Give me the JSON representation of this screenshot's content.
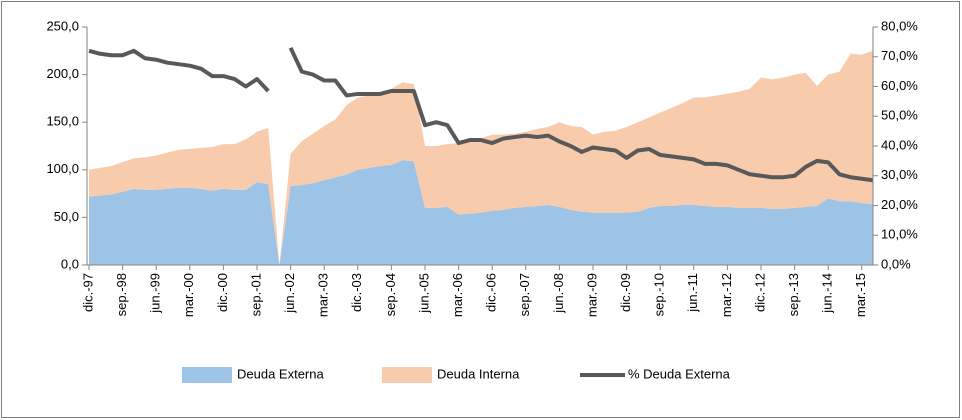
{
  "chart_data": {
    "type": "stacked_area_line",
    "categories": [
      "dic.-97",
      null,
      null,
      "sep.-98",
      null,
      null,
      "jun.-99",
      null,
      null,
      "mar.-00",
      null,
      null,
      "dic.-00",
      null,
      null,
      "sep.-01",
      null,
      null,
      "jun.-02",
      null,
      null,
      "mar.-03",
      null,
      null,
      "dic.-03",
      null,
      null,
      "sep.-04",
      null,
      null,
      "jun.-05",
      null,
      null,
      "mar.-06",
      null,
      null,
      "dic.-06",
      null,
      null,
      "sep.-07",
      null,
      null,
      "jun.-08",
      null,
      null,
      "mar.-09",
      null,
      null,
      "dic.-09",
      null,
      null,
      "sep.-10",
      null,
      null,
      "jun.-11",
      null,
      null,
      "mar.-12",
      null,
      null,
      "dic.-12",
      null,
      null,
      "sep.-13",
      null,
      null,
      "jun.-14",
      null,
      null,
      "mar.-15",
      null
    ],
    "series": [
      {
        "name": "Deuda Externa",
        "type": "area",
        "color": "#9dc3e6",
        "values": [
          72,
          73,
          74,
          77,
          80,
          79,
          79,
          80,
          81,
          81,
          80,
          78,
          80,
          79,
          79,
          87,
          85,
          0,
          83,
          84,
          86,
          89,
          92,
          95,
          100,
          102,
          104,
          105,
          110,
          109,
          60,
          60,
          61,
          53,
          54,
          55,
          57,
          58,
          60,
          61,
          62,
          63,
          61,
          58,
          56,
          55,
          55,
          55,
          55,
          56,
          60,
          62,
          62,
          63,
          63,
          62,
          61,
          61,
          60,
          60,
          60,
          59,
          59,
          60,
          61,
          62,
          70,
          67,
          67,
          65,
          64
        ]
      },
      {
        "name": "Deuda Interna",
        "type": "area",
        "color": "#f8cbad",
        "values": [
          28,
          29,
          30,
          31,
          32,
          34,
          36,
          38,
          40,
          41,
          43,
          46,
          47,
          48,
          53,
          53,
          59,
          0,
          34,
          46,
          52,
          57,
          61,
          73,
          76,
          76,
          76,
          80,
          82,
          81,
          65,
          65,
          66,
          75,
          76,
          78,
          80,
          79,
          78,
          79,
          81,
          82,
          89,
          88,
          89,
          82,
          85,
          86,
          90,
          94,
          95,
          98,
          103,
          107,
          113,
          114,
          117,
          119,
          122,
          125,
          137,
          136,
          138,
          140,
          141,
          126,
          130,
          136,
          155,
          156,
          161
        ]
      },
      {
        "name": "% Deuda Externa",
        "type": "line",
        "axis": "y2",
        "color": "#595959",
        "values": [
          72,
          71,
          70.5,
          70.5,
          72,
          69.5,
          69,
          68,
          67.5,
          67,
          66,
          63.5,
          63.5,
          62.5,
          60,
          62.5,
          58.5,
          null,
          73,
          65,
          64,
          62,
          62,
          57,
          57.5,
          57.5,
          57.5,
          58.5,
          58.5,
          58.5,
          47,
          48,
          47,
          41,
          42,
          42,
          41,
          42.5,
          43,
          43.5,
          43,
          43.5,
          41.5,
          40,
          38,
          39.5,
          39,
          38.5,
          36,
          38.5,
          39,
          37,
          36.5,
          36,
          35.5,
          34,
          34,
          33.5,
          32,
          30.5,
          30,
          29.5,
          29.5,
          30,
          33,
          35,
          34.5,
          30.5,
          29.5,
          29,
          28.5
        ]
      }
    ],
    "ylim": [
      0,
      250
    ],
    "yticks": [
      {
        "value": 0,
        "label": "0,0"
      },
      {
        "value": 50,
        "label": "50,0"
      },
      {
        "value": 100,
        "label": "100,0"
      },
      {
        "value": 150,
        "label": "150,0"
      },
      {
        "value": 200,
        "label": "200,0"
      },
      {
        "value": 250,
        "label": "250,0"
      }
    ],
    "y2lim": [
      0,
      80
    ],
    "y2ticks": [
      {
        "value": 0,
        "label": "0,0%"
      },
      {
        "value": 10,
        "label": "10,0%"
      },
      {
        "value": 20,
        "label": "20,0%"
      },
      {
        "value": 30,
        "label": "30,0%"
      },
      {
        "value": 40,
        "label": "40,0%"
      },
      {
        "value": 50,
        "label": "50,0%"
      },
      {
        "value": 60,
        "label": "60,0%"
      },
      {
        "value": 70,
        "label": "70,0%"
      },
      {
        "value": 80,
        "label": "80,0%"
      }
    ],
    "legend": "bottom"
  }
}
